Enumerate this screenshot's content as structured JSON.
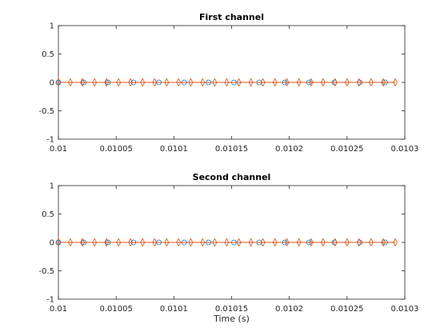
{
  "figure": {
    "background": "#ffffff",
    "axes_color": "#262626"
  },
  "chart_data": [
    {
      "type": "line",
      "title": "First channel",
      "xlabel": "",
      "ylabel": "",
      "xlim": [
        0.01,
        0.0103
      ],
      "ylim": [
        -1,
        1
      ],
      "x_ticks": [
        "0.01",
        "0.01005",
        "0.0101",
        "0.01015",
        "0.0102",
        "0.01025",
        "0.0103"
      ],
      "y_ticks": [
        "-1",
        "-0.5",
        "0",
        "0.5",
        "1"
      ],
      "grid": false,
      "series": [
        {
          "marker": "circle",
          "color": "#0072bd",
          "line": true,
          "x": [
            0.01,
            0.010022,
            0.010043,
            0.010065,
            0.010087,
            0.010109,
            0.01013,
            0.010152,
            0.010174,
            0.010196,
            0.010217,
            0.010239,
            0.010261,
            0.010283
          ],
          "y": [
            0,
            0,
            0,
            0,
            0,
            0,
            0,
            0,
            0,
            0,
            0,
            0,
            0,
            0
          ]
        },
        {
          "marker": "diamond",
          "color": "#d95319",
          "line": true,
          "x": [
            0.01,
            0.0100104,
            0.0100208,
            0.0100313,
            0.0100417,
            0.0100521,
            0.0100625,
            0.0100729,
            0.0100833,
            0.0100938,
            0.0101042,
            0.0101146,
            0.010125,
            0.0101354,
            0.0101458,
            0.0101563,
            0.0101667,
            0.0101771,
            0.0101875,
            0.0101979,
            0.0102083,
            0.0102188,
            0.0102292,
            0.0102396,
            0.01025,
            0.0102604,
            0.0102708,
            0.0102813,
            0.0102917
          ],
          "y": [
            0,
            0,
            0,
            0,
            0,
            0,
            0,
            0,
            0,
            0,
            0,
            0,
            0,
            0,
            0,
            0,
            0,
            0,
            0,
            0,
            0,
            0,
            0,
            0,
            0,
            0,
            0,
            0,
            0
          ]
        }
      ]
    },
    {
      "type": "line",
      "title": "Second channel",
      "xlabel": "Time (s)",
      "ylabel": "",
      "xlim": [
        0.01,
        0.0103
      ],
      "ylim": [
        -1,
        1
      ],
      "x_ticks": [
        "0.01",
        "0.01005",
        "0.0101",
        "0.01015",
        "0.0102",
        "0.01025",
        "0.0103"
      ],
      "y_ticks": [
        "-1",
        "-0.5",
        "0",
        "0.5",
        "1"
      ],
      "grid": false,
      "series": [
        {
          "marker": "circle",
          "color": "#0072bd",
          "line": true,
          "x": [
            0.01,
            0.010022,
            0.010043,
            0.010065,
            0.010087,
            0.010109,
            0.01013,
            0.010152,
            0.010174,
            0.010196,
            0.010217,
            0.010239,
            0.010261,
            0.010283
          ],
          "y": [
            0,
            0,
            0,
            0,
            0,
            0,
            0,
            0,
            0,
            0,
            0,
            0,
            0,
            0
          ]
        },
        {
          "marker": "diamond",
          "color": "#d95319",
          "line": true,
          "x": [
            0.01,
            0.0100104,
            0.0100208,
            0.0100313,
            0.0100417,
            0.0100521,
            0.0100625,
            0.0100729,
            0.0100833,
            0.0100938,
            0.0101042,
            0.0101146,
            0.010125,
            0.0101354,
            0.0101458,
            0.0101563,
            0.0101667,
            0.0101771,
            0.0101875,
            0.0101979,
            0.0102083,
            0.0102188,
            0.0102292,
            0.0102396,
            0.01025,
            0.0102604,
            0.0102708,
            0.0102813,
            0.0102917
          ],
          "y": [
            0,
            0,
            0,
            0,
            0,
            0,
            0,
            0,
            0,
            0,
            0,
            0,
            0,
            0,
            0,
            0,
            0,
            0,
            0,
            0,
            0,
            0,
            0,
            0,
            0,
            0,
            0,
            0,
            0
          ]
        }
      ]
    }
  ]
}
